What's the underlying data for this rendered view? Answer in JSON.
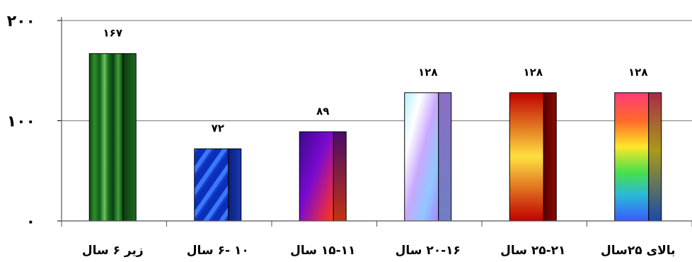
{
  "chart_data": {
    "type": "bar",
    "categories": [
      "زیر ۶ سال",
      "۱۰ -۶ سال",
      "۱۵-۱۱ سال",
      "۲۰-۱۶ سال",
      "۲۵-۲۱ سال",
      "بالای ۲۵سال"
    ],
    "values": [
      167,
      72,
      89,
      128,
      128,
      128
    ],
    "value_labels": [
      "۱۶۷",
      "۷۲",
      "۸۹",
      "۱۲۸",
      "۱۲۸",
      "۱۲۸"
    ],
    "y_ticks": [
      0,
      100,
      200
    ],
    "y_tick_labels": [
      "۰",
      "۱۰۰",
      "۲۰۰"
    ],
    "ylim": [
      0,
      200
    ],
    "grid": true,
    "legend": "none",
    "bar_styles": [
      "green-texture",
      "blue-diagonal-stripes",
      "purple-red-gradient",
      "pastel-rainbow-gradient",
      "red-yellow-fire-gradient",
      "rainbow-vertical-gradient"
    ]
  }
}
